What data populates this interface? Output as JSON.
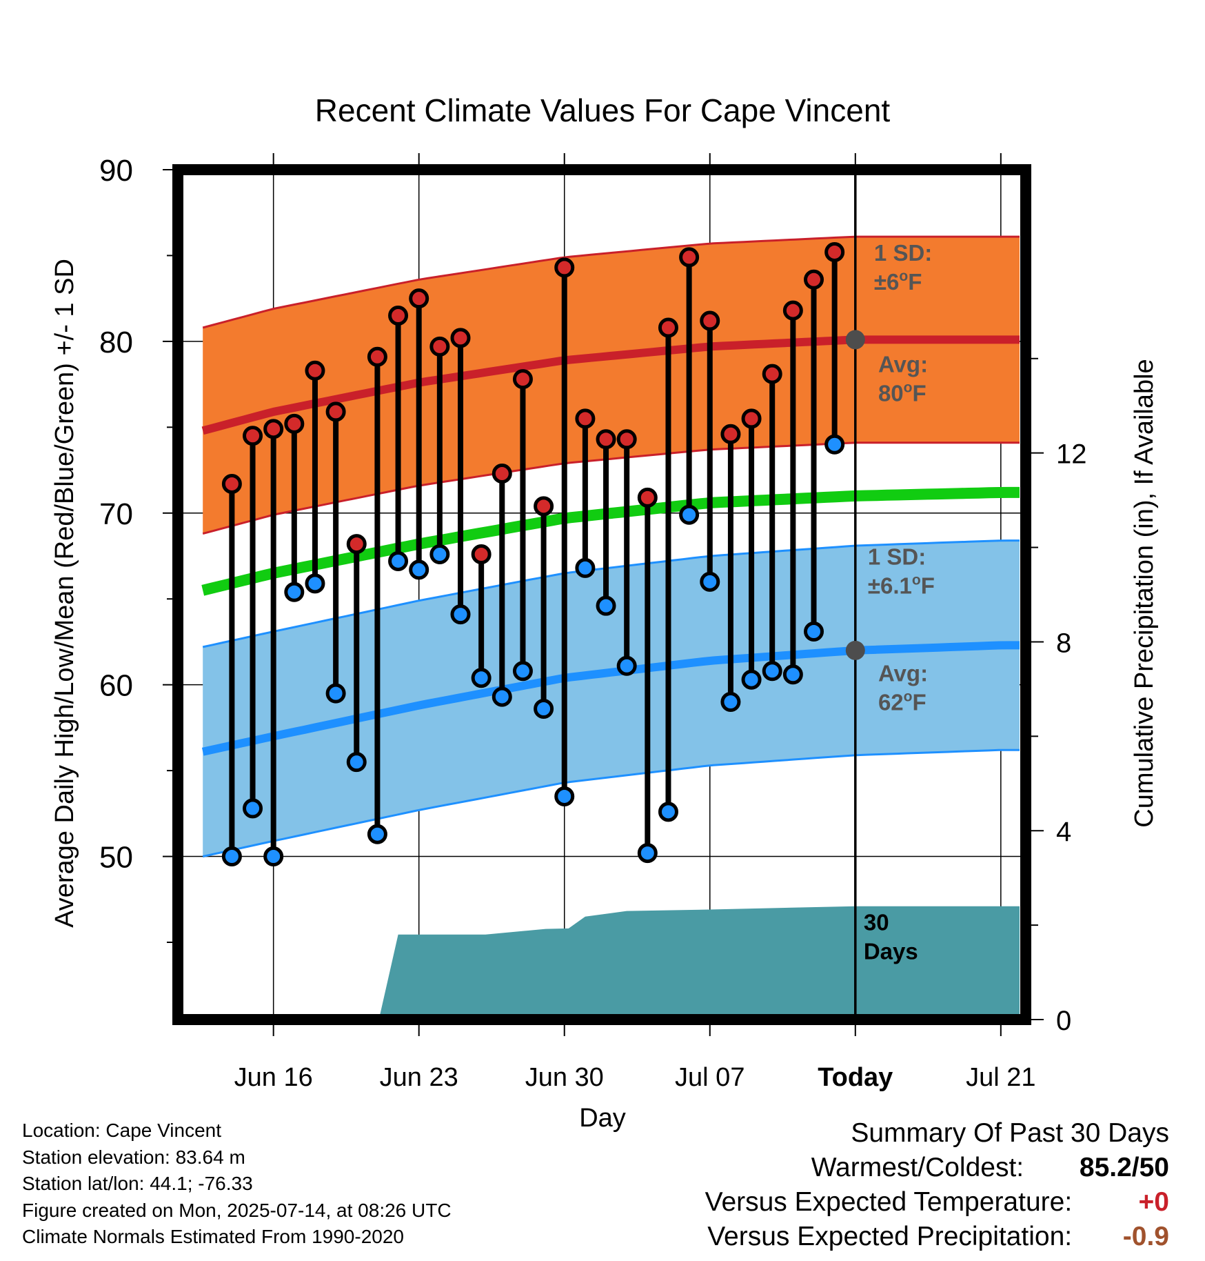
{
  "chart_data": {
    "type": "line",
    "title": "Recent Climate Values For Cape Vincent",
    "xlabel": "Day",
    "ylabel": "Average Daily High/Low/Mean (Red/Blue/Green) +/- 1 SD",
    "y2label": "Cumulative Precipitation (in), If Available",
    "ylim": [
      40.5,
      90
    ],
    "y2lim": [
      0,
      18.0
    ],
    "xlim": [
      -4.6,
      36.2
    ],
    "x_ticks": [
      {
        "x": 0,
        "label": "Jun 16"
      },
      {
        "x": 7,
        "label": "Jun 23"
      },
      {
        "x": 14,
        "label": "Jun 30"
      },
      {
        "x": 21,
        "label": "Jul 07"
      },
      {
        "x": 28,
        "label": "Today"
      },
      {
        "x": 35,
        "label": "Jul 21"
      }
    ],
    "y_ticks": [
      50,
      60,
      70,
      80,
      90
    ],
    "y2_ticks": [
      0,
      4,
      8,
      12
    ],
    "today_x": 28,
    "observed": {
      "x": [
        -2,
        -1,
        0,
        1,
        2,
        3,
        4,
        5,
        6,
        7,
        8,
        9,
        10,
        11,
        12,
        13,
        14,
        15,
        16,
        17,
        18,
        19,
        20,
        21,
        22,
        23,
        24,
        25,
        26,
        27
      ],
      "high": [
        71.7,
        74.5,
        74.9,
        75.2,
        78.3,
        75.9,
        68.2,
        79.1,
        81.5,
        82.5,
        79.7,
        80.2,
        67.6,
        72.3,
        77.8,
        70.4,
        84.3,
        75.5,
        74.3,
        74.3,
        70.9,
        80.8,
        84.9,
        81.2,
        74.6,
        75.5,
        78.1,
        81.8,
        83.6,
        85.2
      ],
      "low": [
        50.0,
        52.8,
        50.0,
        65.4,
        65.9,
        59.5,
        55.5,
        51.3,
        67.2,
        66.7,
        67.6,
        64.1,
        60.4,
        59.3,
        60.8,
        58.6,
        53.5,
        66.8,
        64.6,
        61.1,
        50.2,
        52.6,
        69.9,
        66.0,
        59.0,
        60.3,
        60.8,
        60.6,
        63.1,
        74.0
      ]
    },
    "normals": {
      "x": [
        -3.4,
        0,
        7,
        14,
        21,
        28,
        35,
        35.9
      ],
      "high_avg": [
        74.8,
        75.9,
        77.6,
        78.9,
        79.7,
        80.1,
        80.1,
        80.1
      ],
      "low_avg": [
        56.1,
        57.0,
        58.8,
        60.4,
        61.4,
        62.0,
        62.3,
        62.3
      ],
      "mean_avg": [
        65.5,
        66.5,
        68.2,
        69.7,
        70.6,
        71.0,
        71.2,
        71.2
      ],
      "high_sd": 6.0,
      "low_sd": 6.1
    },
    "cumulative_precip": {
      "x": [
        -3.4,
        5.1,
        6.0,
        7.0,
        10.2,
        13.1,
        14.2,
        15.0,
        17.0,
        21.0,
        28.0,
        35.9
      ],
      "y": [
        0.0,
        0.05,
        1.8,
        1.8,
        1.8,
        1.92,
        1.93,
        2.18,
        2.3,
        2.33,
        2.4,
        2.4
      ]
    },
    "annotations": {
      "high_sd": {
        "line1": "1 SD:",
        "line2_prefix": "±6",
        "line2_suffix": "F"
      },
      "high_avg": {
        "line1": "Avg:",
        "line2_prefix": "80",
        "line2_suffix": "F"
      },
      "low_sd": {
        "line1": "1 SD:",
        "line2_prefix": "±6.1",
        "line2_suffix": "F"
      },
      "low_avg": {
        "line1": "Avg:",
        "line2_prefix": "62",
        "line2_suffix": "F"
      },
      "degree_mark": "o",
      "window_line1": "30",
      "window_line2": "Days"
    },
    "grid": true,
    "colors": {
      "high_band": "#f37b2e",
      "high_line": "#c9202a",
      "low_band": "#83c2e8",
      "low_line": "#1e90ff",
      "mean_line": "#11cc11",
      "precip": "#4a9ba4",
      "high_marker": "#d42a2a",
      "low_marker": "#1e90ff",
      "today_marker": "#4d4d4d",
      "annotation_text": "#555555"
    }
  },
  "footer": {
    "location": "Location: Cape Vincent",
    "elevation": "Station elevation: 83.64 m",
    "latlon": "Station lat/lon: 44.1; -76.33",
    "created": "Figure created on Mon, 2025-07-14, at 08:26 UTC",
    "normals": "Climate Normals Estimated From 1990-2020"
  },
  "summary": {
    "title": "Summary Of Past 30 Days",
    "warmest_label": "Warmest/Coldest:",
    "warmest_value": "85.2/50",
    "temp_label": "Versus Expected Temperature:",
    "temp_value": "+0",
    "temp_color": "#c9202a",
    "precip_label": "Versus Expected Precipitation:",
    "precip_value": "-0.9",
    "precip_color": "#a0522d"
  }
}
